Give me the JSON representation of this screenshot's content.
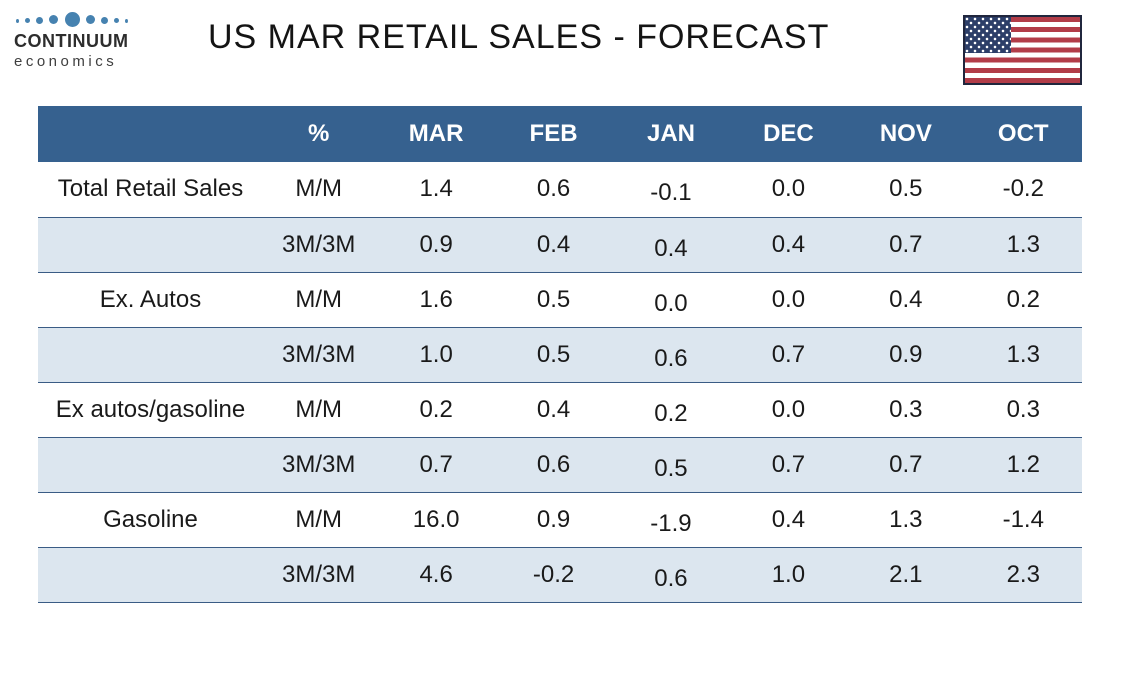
{
  "header": {
    "logo": {
      "name": "CONTINUUM",
      "tagline": "economics"
    }
  },
  "chart_data": {
    "type": "table",
    "title": "US MAR RETAIL SALES - FORECAST",
    "columns": [
      "",
      "%",
      "MAR",
      "FEB",
      "JAN",
      "DEC",
      "NOV",
      "OCT"
    ],
    "rows": [
      {
        "label": "Total Retail Sales",
        "measure": "M/M",
        "values": [
          "1.4",
          "0.6",
          "-0.1",
          "0.0",
          "0.5",
          "-0.2"
        ]
      },
      {
        "label": "",
        "measure": "3M/3M",
        "values": [
          "0.9",
          "0.4",
          "0.4",
          "0.4",
          "0.7",
          "1.3"
        ]
      },
      {
        "label": "Ex. Autos",
        "measure": "M/M",
        "values": [
          "1.6",
          "0.5",
          "0.0",
          "0.0",
          "0.4",
          "0.2"
        ]
      },
      {
        "label": "",
        "measure": "3M/3M",
        "values": [
          "1.0",
          "0.5",
          "0.6",
          "0.7",
          "0.9",
          "1.3"
        ]
      },
      {
        "label": "Ex autos/gasoline",
        "measure": "M/M",
        "values": [
          "0.2",
          "0.4",
          "0.2",
          "0.0",
          "0.3",
          "0.3"
        ]
      },
      {
        "label": "",
        "measure": "3M/3M",
        "values": [
          "0.7",
          "0.6",
          "0.5",
          "0.7",
          "0.7",
          "1.2"
        ]
      },
      {
        "label": "Gasoline",
        "measure": "M/M",
        "values": [
          "16.0",
          "0.9",
          "-1.9",
          "0.4",
          "1.3",
          "-1.4"
        ]
      },
      {
        "label": "",
        "measure": "3M/3M",
        "values": [
          "4.6",
          "-0.2",
          "0.6",
          "1.0",
          "2.1",
          "2.3"
        ]
      }
    ]
  },
  "colors": {
    "header_bg": "#36618F",
    "shaded_row": "#DCE6EF",
    "row_line": "#3A5C85",
    "logo_blue": "#4682B0",
    "flag_red": "#B23C48",
    "flag_canton": "#2C3E68",
    "flag_border": "#20263D"
  }
}
